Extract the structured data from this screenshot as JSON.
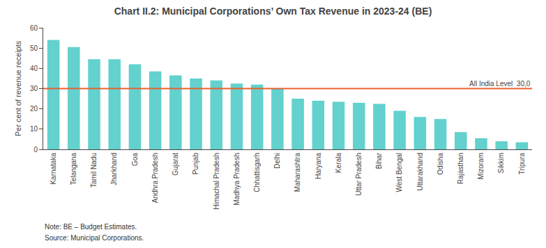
{
  "chart_data": {
    "type": "bar",
    "title": "Chart II.2: Municipal Corporations’ Own Tax Revenue in 2023-24 (BE)",
    "ylabel": "Per cent of revenue receipts",
    "categories": [
      "Karnataka",
      "Telangana",
      "Tamil Nadu",
      "Jharkhand",
      "Goa",
      "Andhra Pradesh",
      "Gujarat",
      "Punjab",
      "Himachal Pradesh",
      "Madhya Pradesh",
      "Chhattisgarh",
      "Delhi",
      "Maharashtra",
      "Haryana",
      "Kerala",
      "Uttar Pradesh",
      "Bihar",
      "West Bengal",
      "Uttarakhand",
      "Odisha",
      "Rajasthan",
      "Mizoram",
      "Sikkim",
      "Tripura"
    ],
    "values": [
      54,
      50.5,
      44.5,
      44.5,
      42,
      38.5,
      36.5,
      35,
      34,
      32.5,
      32,
      30,
      25,
      24,
      23.5,
      23,
      22.5,
      19,
      16,
      15,
      8.5,
      5.5,
      4,
      3.5
    ],
    "color": "#63D1CE",
    "hline": {
      "value": 30,
      "color": "#E8612C",
      "label": "All India Level  30,0"
    },
    "ylim": [
      0,
      60
    ],
    "yticks": [
      0,
      10,
      20,
      30,
      40,
      50,
      60
    ],
    "grid": false,
    "notes": [
      "Note: BE – Budget Estimates.",
      "Source: Municipal Corporations."
    ]
  }
}
